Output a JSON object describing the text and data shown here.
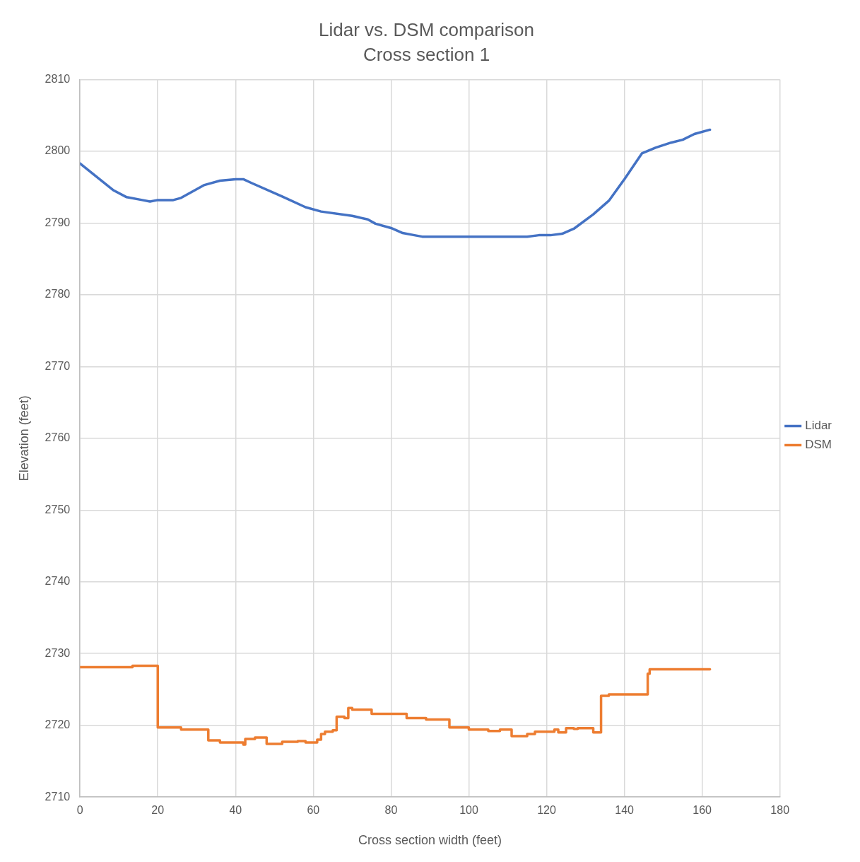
{
  "chart_data": {
    "type": "line",
    "title": "Lidar vs. DSM comparison",
    "subtitle": "Cross section 1",
    "xlabel": "Cross section width (feet)",
    "ylabel": "Elevation (feet)",
    "xlim": [
      0,
      180
    ],
    "xticks": [
      0,
      20,
      40,
      60,
      80,
      100,
      120,
      140,
      160,
      180
    ],
    "ylim": [
      2710,
      2810
    ],
    "yticks": [
      2710,
      2720,
      2730,
      2740,
      2750,
      2760,
      2770,
      2780,
      2790,
      2800,
      2810
    ],
    "grid": true,
    "legend": "right",
    "marker": "none",
    "line_style": "solid",
    "series": [
      {
        "name": "Lidar",
        "color": "#4472c4",
        "x": [
          0,
          8.5,
          12,
          16,
          18,
          20,
          24,
          26,
          32,
          36,
          40,
          42,
          44,
          52,
          58,
          62,
          70,
          74,
          76,
          80,
          83,
          86,
          88,
          115,
          118,
          121,
          124,
          127,
          132,
          136,
          140,
          144.5,
          148,
          152,
          155,
          158,
          162
        ],
        "values": [
          2798.3,
          2794.6,
          2793.6,
          2793.2,
          2793.0,
          2793.2,
          2793.2,
          2793.5,
          2795.3,
          2795.9,
          2796.1,
          2796.1,
          2795.6,
          2793.7,
          2792.2,
          2791.6,
          2791.0,
          2790.5,
          2789.9,
          2789.3,
          2788.6,
          2788.3,
          2788.1,
          2788.1,
          2788.3,
          2788.3,
          2788.5,
          2789.2,
          2791.2,
          2793.1,
          2796.1,
          2799.7,
          2800.5,
          2801.2,
          2801.6,
          2802.4,
          2803.0
        ]
      },
      {
        "name": "DSM",
        "type": "step",
        "color": "#ed7d31",
        "x": [
          0,
          13.5,
          20,
          26,
          33,
          36,
          42,
          42.5,
          45,
          48,
          52,
          56,
          58,
          61,
          62,
          63,
          65,
          66,
          68,
          69,
          70,
          75,
          84,
          89,
          95,
          100,
          105,
          108,
          111,
          115,
          117,
          122,
          123,
          125,
          127,
          128,
          132,
          134,
          136,
          146,
          146.5,
          162
        ],
        "values": [
          2728.1,
          2728.3,
          2719.7,
          2719.4,
          2717.9,
          2717.6,
          2717.3,
          2718.1,
          2718.3,
          2717.4,
          2717.7,
          2717.8,
          2717.6,
          2718.0,
          2718.8,
          2719.1,
          2719.3,
          2721.2,
          2721.0,
          2722.4,
          2722.2,
          2721.6,
          2721.0,
          2720.8,
          2719.7,
          2719.4,
          2719.2,
          2719.4,
          2718.5,
          2718.8,
          2719.1,
          2719.4,
          2719.0,
          2719.6,
          2719.5,
          2719.6,
          2719.0,
          2724.1,
          2724.3,
          2727.2,
          2727.8,
          2727.8
        ]
      }
    ]
  }
}
